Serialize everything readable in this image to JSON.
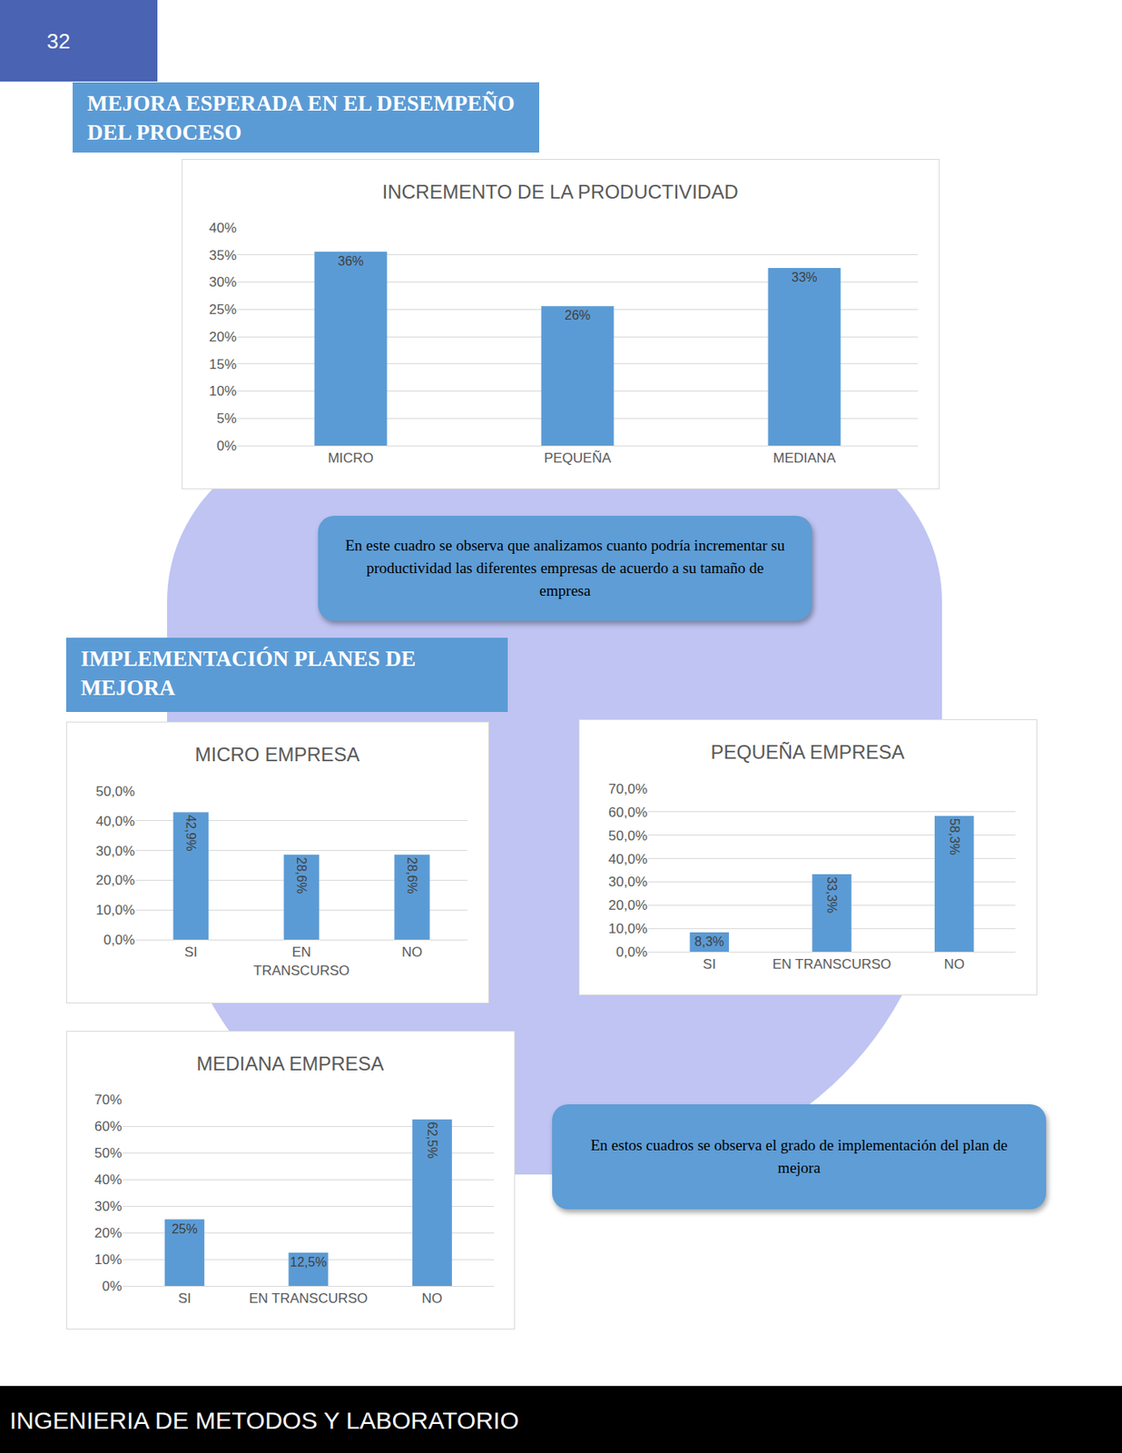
{
  "page": {
    "number": "32",
    "footer": "INGENIERIA DE METODOS Y LABORATORIO",
    "sections": [
      {
        "heading": "MEJORA ESPERADA EN EL DESEMPEÑO DEL PROCESO",
        "note": "En este cuadro se observa que analizamos cuanto podría incrementar su productividad las diferentes empresas de acuerdo a su tamaño de empresa"
      },
      {
        "heading": "IMPLEMENTACIÓN PLANES DE MEJORA",
        "note": "En estos cuadros se observa el grado de implementación del plan de mejora"
      }
    ]
  },
  "chart_data": [
    {
      "type": "bar",
      "title": "INCREMENTO DE LA PRODUCTIVIDAD",
      "categories": [
        "MICRO",
        "PEQUEÑA",
        "MEDIANA"
      ],
      "values": [
        35.6,
        25.6,
        32.6
      ],
      "value_labels": [
        "36%",
        "26%",
        "33%"
      ],
      "color": "#5b9bd5",
      "ylim": [
        0,
        40
      ],
      "yticks": [
        {
          "value": 0,
          "label": "0%"
        },
        {
          "value": 5,
          "label": "5%"
        },
        {
          "value": 10,
          "label": "10%"
        },
        {
          "value": 15,
          "label": "15%"
        },
        {
          "value": 20,
          "label": "20%"
        },
        {
          "value": 25,
          "label": "25%"
        },
        {
          "value": 30,
          "label": "30%"
        },
        {
          "value": 35,
          "label": "35%"
        },
        {
          "value": 40,
          "label": "40%"
        }
      ],
      "grid": true,
      "data_labels": true
    },
    {
      "type": "bar",
      "title": "MICRO EMPRESA",
      "categories": [
        "SI",
        "EN TRANSCURSO",
        "NO"
      ],
      "values": [
        42.9,
        28.6,
        28.6
      ],
      "value_labels": [
        "42,9%",
        "28,6%",
        "28,6%"
      ],
      "color": "#5b9bd5",
      "ylim": [
        0,
        50
      ],
      "yticks": [
        {
          "value": 0,
          "label": "0,0%"
        },
        {
          "value": 10,
          "label": "10,0%"
        },
        {
          "value": 20,
          "label": "20,0%"
        },
        {
          "value": 30,
          "label": "30,0%"
        },
        {
          "value": 40,
          "label": "40,0%"
        },
        {
          "value": 50,
          "label": "50,0%"
        }
      ],
      "grid": true,
      "data_labels": true
    },
    {
      "type": "bar",
      "title": "PEQUEÑA EMPRESA",
      "categories": [
        "SI",
        "EN TRANSCURSO",
        "NO"
      ],
      "values": [
        8.3,
        33.3,
        58.3
      ],
      "value_labels": [
        "8,3%",
        "33,3%",
        "58,3%"
      ],
      "color": "#5b9bd5",
      "ylim": [
        0,
        70
      ],
      "yticks": [
        {
          "value": 0,
          "label": "0,0%"
        },
        {
          "value": 10,
          "label": "10,0%"
        },
        {
          "value": 20,
          "label": "20,0%"
        },
        {
          "value": 30,
          "label": "30,0%"
        },
        {
          "value": 40,
          "label": "40,0%"
        },
        {
          "value": 50,
          "label": "50,0%"
        },
        {
          "value": 60,
          "label": "60,0%"
        },
        {
          "value": 70,
          "label": "70,0%"
        }
      ],
      "grid": true,
      "data_labels": true
    },
    {
      "type": "bar",
      "title": "MEDIANA EMPRESA",
      "categories": [
        "SI",
        "EN TRANSCURSO",
        "NO"
      ],
      "values": [
        25,
        12.5,
        62.5
      ],
      "value_labels": [
        "25%",
        "12,5%",
        "62,5%"
      ],
      "color": "#5b9bd5",
      "ylim": [
        0,
        70
      ],
      "yticks": [
        {
          "value": 0,
          "label": "0%"
        },
        {
          "value": 10,
          "label": "10%"
        },
        {
          "value": 20,
          "label": "20%"
        },
        {
          "value": 30,
          "label": "30%"
        },
        {
          "value": 40,
          "label": "40%"
        },
        {
          "value": 50,
          "label": "50%"
        },
        {
          "value": 60,
          "label": "60%"
        },
        {
          "value": 70,
          "label": "70%"
        }
      ],
      "grid": true,
      "data_labels": true
    }
  ]
}
